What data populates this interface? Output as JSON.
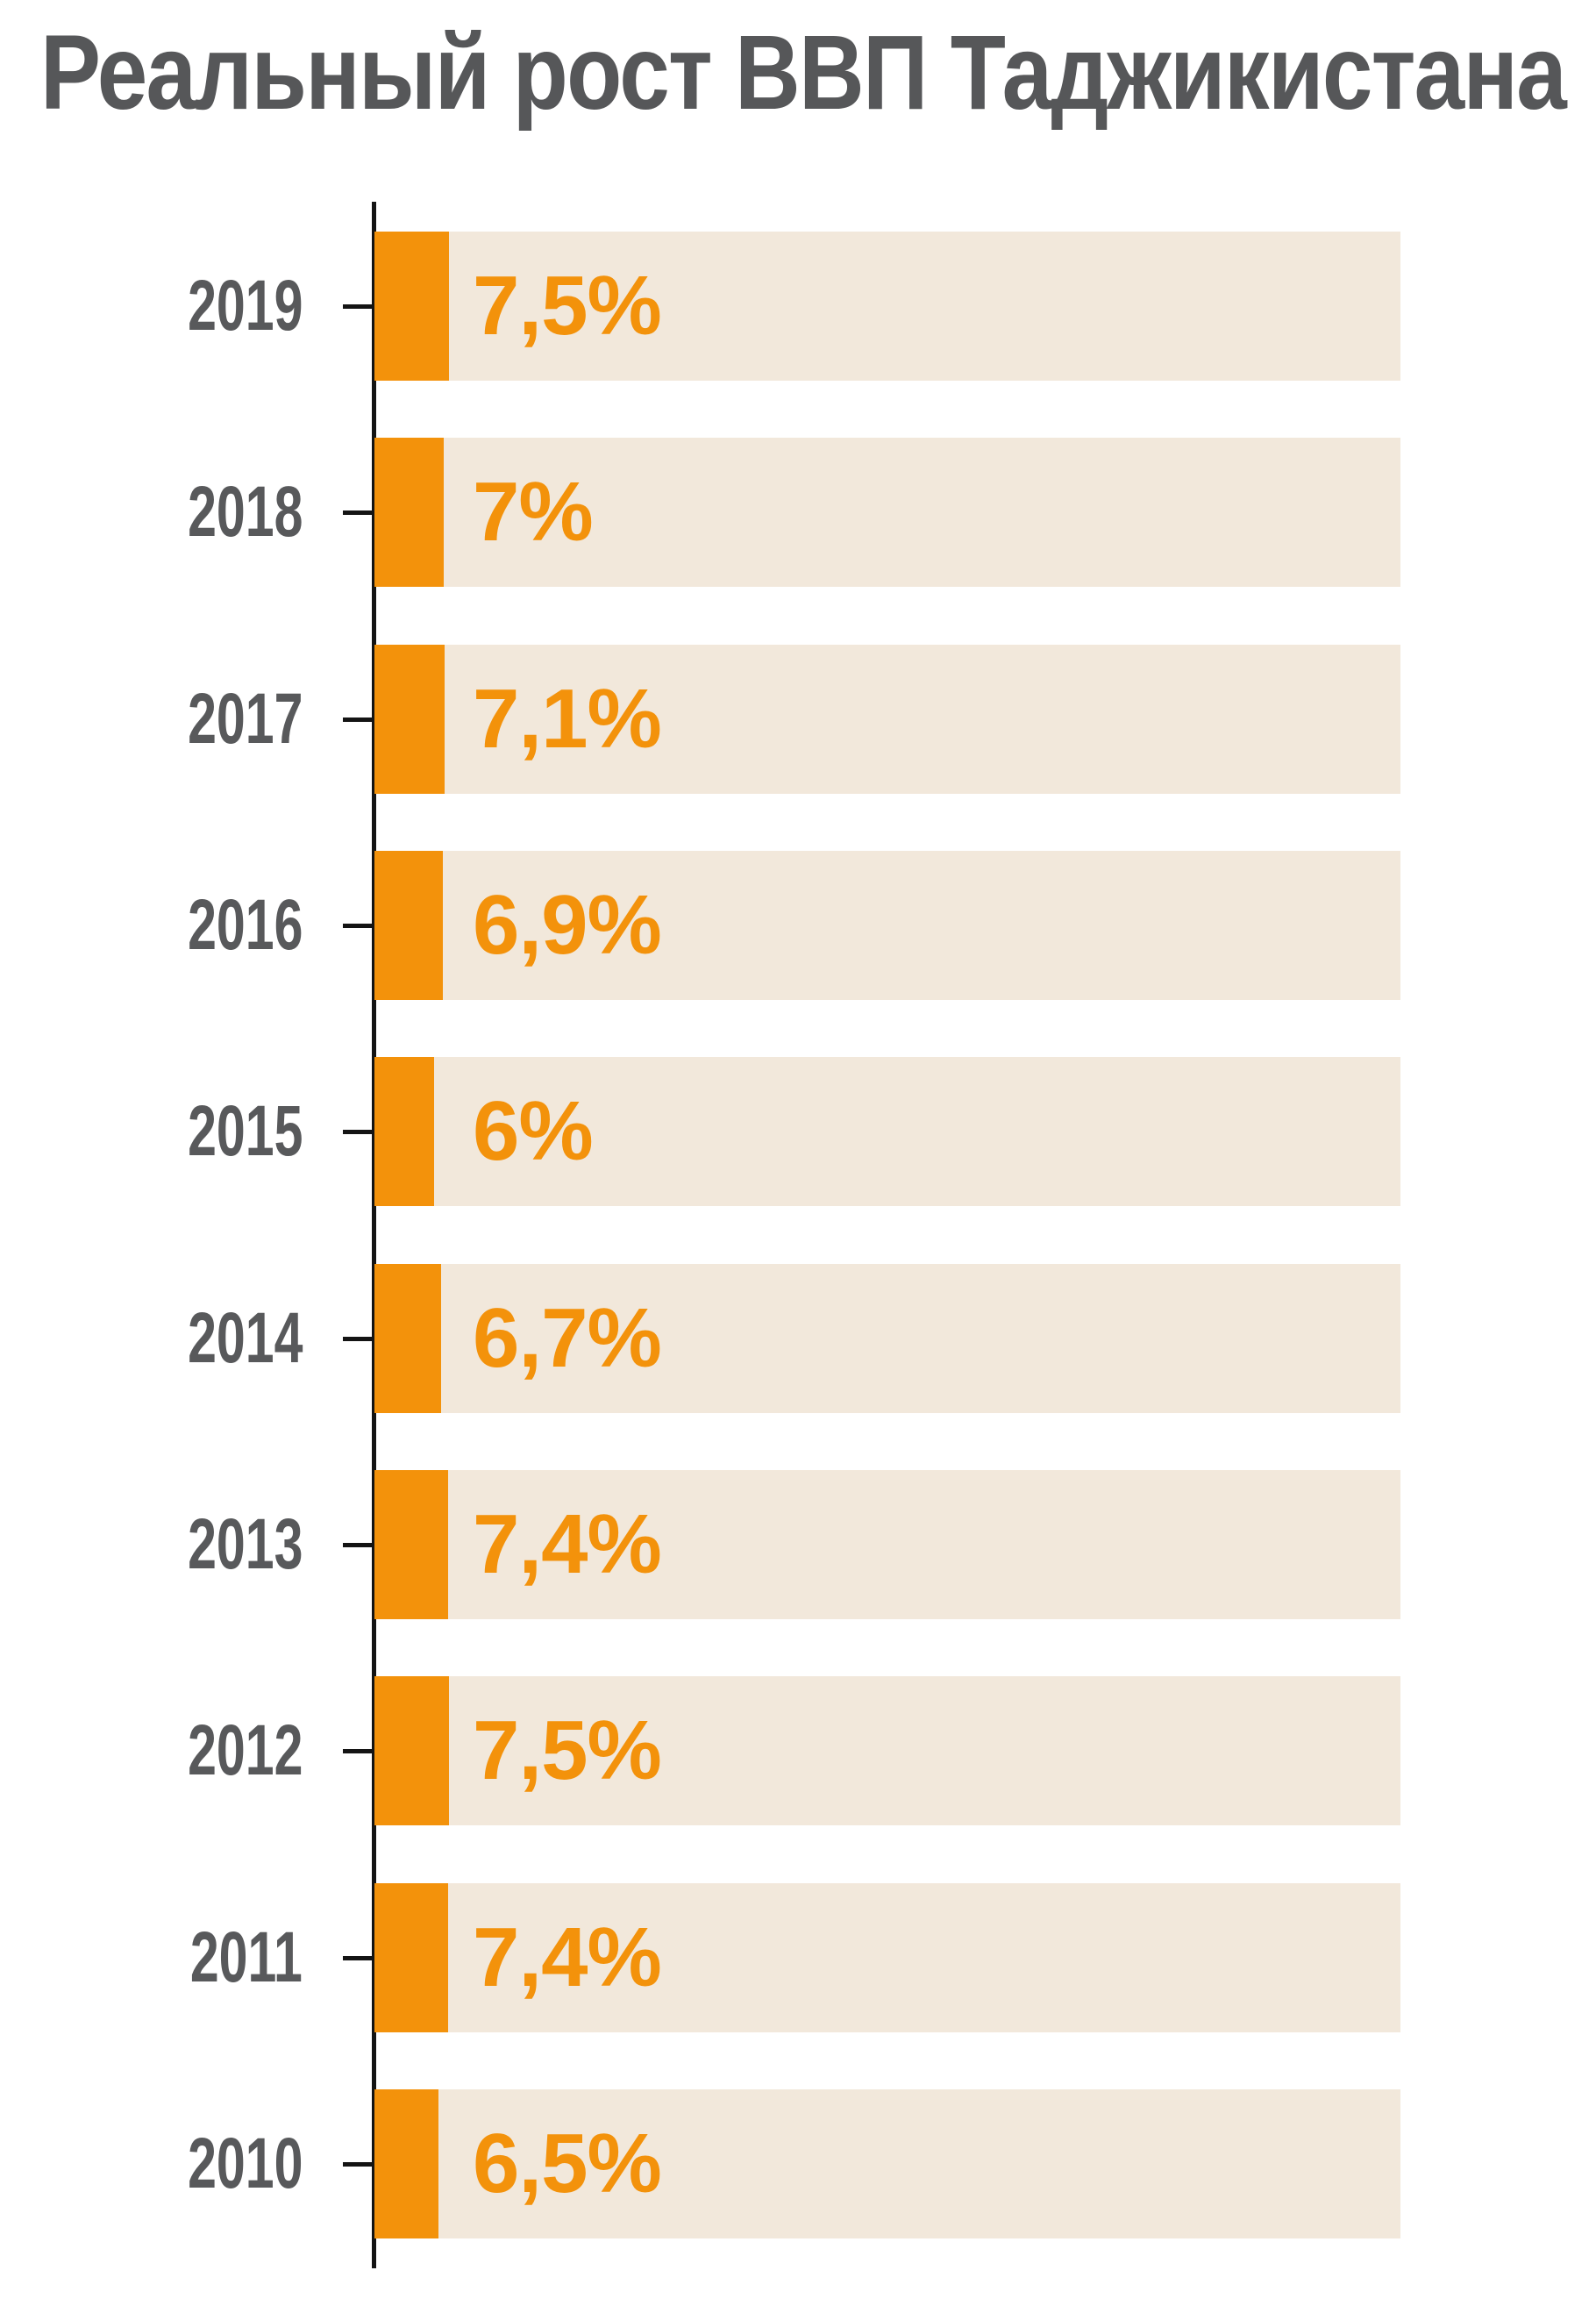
{
  "title": "Реальный рост ВВП Таджикистана",
  "chart_data": {
    "type": "bar",
    "orientation": "horizontal",
    "title": "Реальный рост ВВП Таджикистана",
    "categories": [
      "2019",
      "2018",
      "2017",
      "2016",
      "2015",
      "2014",
      "2013",
      "2012",
      "2011",
      "2010"
    ],
    "values": [
      7.5,
      7,
      7.1,
      6.9,
      6,
      6.7,
      7.4,
      7.5,
      7.4,
      6.5
    ],
    "value_labels": [
      "7,5%",
      "7%",
      "7,1%",
      "6,9%",
      "6%",
      "6,7%",
      "7,4%",
      "7,5%",
      "7,4%",
      "6,5%"
    ],
    "unit": "%",
    "xlabel": "",
    "ylabel": "",
    "grid": false,
    "legend": false,
    "axis_side": "left",
    "colors": {
      "bar_fill": "#F3920B",
      "bar_track": "#F2E8DB",
      "value_text": "#F3920B",
      "year_text": "#58595B",
      "title_text": "#565759",
      "axis": "#141414",
      "background": "#FFFFFF"
    }
  }
}
